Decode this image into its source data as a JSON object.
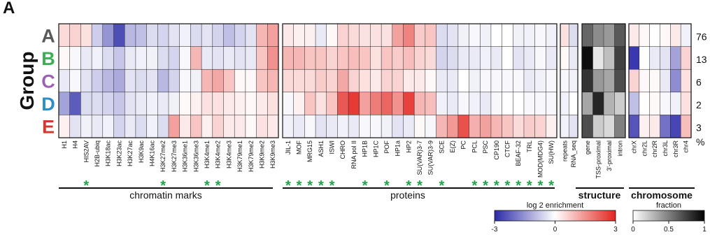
{
  "panel_letter": "A",
  "chart_data": {
    "type": "heatmap",
    "row_axis_title": "Group",
    "rows": [
      {
        "label": "A",
        "color": "#5a5a5a",
        "percent": "76"
      },
      {
        "label": "B",
        "color": "#3cae53",
        "percent": "13"
      },
      {
        "label": "C",
        "color": "#9b62b3",
        "percent": "6"
      },
      {
        "label": "D",
        "color": "#2b8fcb",
        "percent": "2"
      },
      {
        "label": "E",
        "color": "#d33a2f",
        "percent": "3"
      }
    ],
    "percent_label": "%",
    "panels": [
      {
        "id": "chromatin",
        "scale": "enrichment",
        "columns": [
          "H1",
          "H4",
          "HIS2AV",
          "H2B-ubiq",
          "H3K18ac",
          "H3K23ac",
          "H3K27ac",
          "H3K9ac",
          "H4K16ac",
          "H3K27me2",
          "H3K27me3",
          "H3K36me1",
          "H3K36me3",
          "H3K4me1",
          "H3K4me2",
          "H3K4me3",
          "H3K79me1",
          "H3K79me2",
          "H3K9me2",
          "H3K9me3"
        ],
        "stars": [
          2,
          9,
          13,
          14
        ],
        "values": [
          [
            0.5,
            0.6,
            0.4,
            -0.7,
            -1.5,
            -2.5,
            -1.0,
            -0.9,
            -0.5,
            -0.6,
            -0.4,
            -0.2,
            -0.5,
            -0.4,
            -0.6,
            -0.9,
            -0.6,
            -0.4,
            1.0,
            1.3
          ],
          [
            0.1,
            -0.1,
            -0.3,
            -0.2,
            -0.5,
            -0.8,
            -0.3,
            -0.2,
            -0.2,
            -0.5,
            -0.6,
            -0.1,
            1.0,
            -0.3,
            -0.4,
            -0.3,
            -0.4,
            -0.3,
            0.8,
            1.5
          ],
          [
            -0.3,
            -0.1,
            -0.4,
            -0.7,
            -1.0,
            -1.2,
            -0.4,
            -0.5,
            -0.4,
            -1.0,
            -0.6,
            -0.1,
            -0.2,
            1.0,
            1.2,
            0.8,
            0.1,
            0.1,
            0.8,
            1.0
          ],
          [
            -1.3,
            -2.3,
            -0.5,
            -0.5,
            -0.6,
            -0.8,
            -0.4,
            -0.3,
            -0.2,
            -0.3,
            -0.2,
            0.1,
            0.2,
            0.4,
            0.4,
            0.3,
            0.2,
            0.1,
            0.3,
            0.4
          ],
          [
            0.2,
            -0.4,
            -0.2,
            -0.3,
            -0.2,
            -0.6,
            -0.3,
            -0.5,
            -0.2,
            -0.5,
            1.3,
            0.3,
            0.8,
            0.2,
            0.6,
            0.3,
            0.3,
            0.1,
            0.4,
            0.3
          ]
        ]
      },
      {
        "id": "proteins",
        "scale": "enrichment",
        "columns": [
          "JIL-1",
          "MOF",
          "MRG15",
          "ASH1",
          "ISWI",
          "CHRO",
          "RNA pol II",
          "HP1B",
          "HP1C",
          "POF",
          "HP1a",
          "HP2",
          "SU(VAR)3-7",
          "SU(VAR)3-9",
          "SCE",
          "E(Z)",
          "PC",
          "PCL",
          "PSC",
          "CP190",
          "CTCF",
          "BEAF-32",
          "TRL",
          "MOD(MDG4)",
          "SU(HW)"
        ],
        "stars": [
          0,
          1,
          2,
          3,
          4,
          7,
          9,
          11,
          12,
          14,
          17,
          18,
          19,
          20,
          21,
          22,
          23,
          24
        ],
        "values": [
          [
            0.3,
            0.2,
            0.2,
            -0.3,
            0.1,
            0.6,
            0.5,
            0.4,
            0.4,
            0.4,
            1.3,
            1.7,
            0.7,
            0.8,
            -0.5,
            -0.4,
            -0.2,
            -0.1,
            -0.2,
            0.0,
            0.0,
            -0.2,
            -0.2,
            -0.1,
            -0.2
          ],
          [
            1.0,
            1.0,
            0.8,
            0.8,
            0.6,
            0.8,
            0.9,
            0.8,
            0.4,
            0.8,
            0.7,
            0.9,
            0.6,
            0.5,
            -0.6,
            -0.5,
            -0.3,
            -0.3,
            -0.2,
            -0.3,
            0.0,
            -0.4,
            -0.3,
            -0.1,
            -0.3
          ],
          [
            0.5,
            0.5,
            0.5,
            0.7,
            0.6,
            1.2,
            0.6,
            0.4,
            0.3,
            0.6,
            0.6,
            0.3,
            0.3,
            0.1,
            -0.3,
            -0.3,
            0.0,
            -0.2,
            -0.1,
            -0.1,
            -0.1,
            -0.1,
            -0.3,
            -0.2,
            -0.1
          ],
          [
            -0.1,
            0.2,
            0.8,
            0.4,
            0.8,
            2.3,
            2.7,
            1.3,
            1.8,
            2.1,
            1.5,
            2.6,
            1.0,
            0.9,
            -0.2,
            -0.3,
            -0.1,
            -0.2,
            -0.3,
            -0.1,
            0.0,
            0.0,
            -0.1,
            -0.1,
            -0.1
          ],
          [
            -0.2,
            -0.3,
            -0.1,
            -0.4,
            -0.3,
            -0.2,
            -0.3,
            -0.1,
            -0.1,
            -0.2,
            -0.4,
            -0.3,
            0.1,
            -0.1,
            1.0,
            1.4,
            2.4,
            1.1,
            1.3,
            1.0,
            0.8,
            0.5,
            0.7,
            0.6,
            0.2
          ]
        ]
      },
      {
        "id": "repeats",
        "scale": "enrichment",
        "columns": [
          "repeats",
          "RNA_seq"
        ],
        "stars": [],
        "values": [
          [
            0.4,
            -0.5
          ],
          [
            0.1,
            -0.3
          ],
          [
            -0.1,
            -0.2
          ],
          [
            -0.2,
            0.0
          ],
          [
            -0.2,
            -0.4
          ]
        ]
      },
      {
        "id": "structure",
        "scale": "fraction",
        "columns": [
          "gene",
          "TSS-proximal",
          "3'-proximal",
          "intron"
        ],
        "stars": [],
        "values": [
          [
            0.6,
            0.45,
            0.4,
            0.65
          ],
          [
            0.95,
            0.1,
            0.25,
            0.75
          ],
          [
            0.8,
            0.4,
            0.35,
            0.7
          ],
          [
            0.35,
            0.85,
            0.3,
            0.2
          ],
          [
            0.7,
            0.2,
            0.15,
            0.5
          ]
        ]
      },
      {
        "id": "chromosome",
        "scale": "enrichment",
        "columns": [
          "chrX",
          "chr2L",
          "chr2R",
          "chr3L",
          "chr3R",
          "chr4"
        ],
        "stars": [],
        "values": [
          [
            0.3,
            0.1,
            0.0,
            0.1,
            0.3,
            -0.2
          ],
          [
            -2.8,
            0.0,
            -0.3,
            -0.4,
            -1.3,
            0.6
          ],
          [
            0.6,
            0.1,
            0.1,
            -0.3,
            -1.6,
            0.4
          ],
          [
            -0.9,
            0.0,
            0.1,
            -0.1,
            -0.2,
            0.4
          ],
          [
            -2.4,
            0.2,
            0.3,
            -2.0,
            -2.6,
            0.9
          ]
        ]
      }
    ],
    "group_labels": [
      {
        "text": "chromatin marks"
      },
      {
        "text": "proteins"
      },
      {
        "text": "structure"
      },
      {
        "text": "chromosome"
      }
    ],
    "legend_enrichment": {
      "title": "log 2 enrichment",
      "min": -3,
      "max": 3,
      "ticks": [
        "-3",
        "0",
        "3"
      ]
    },
    "legend_fraction": {
      "title": "fraction",
      "min": 0,
      "max": 1,
      "ticks": [
        "0",
        "0.5",
        "1"
      ]
    },
    "colors": {
      "low": "#2b2aa8",
      "mid": "#ffffff",
      "high": "#e3251e",
      "star": "#1ea548"
    }
  }
}
